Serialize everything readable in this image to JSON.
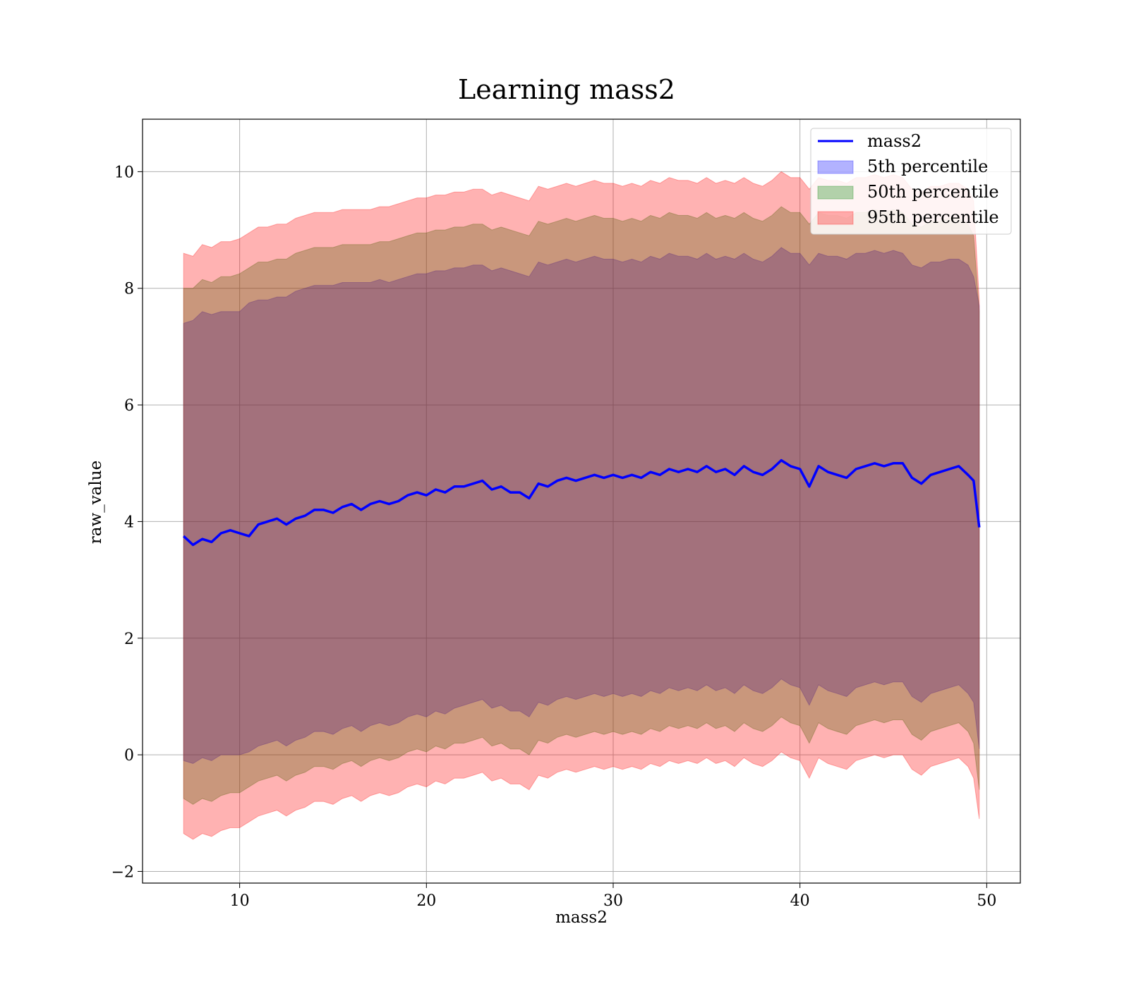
{
  "chart_data": {
    "type": "area",
    "title": "Learning mass2",
    "xlabel": "mass2",
    "ylabel": "raw_value",
    "xlim": [
      4.8,
      51.8
    ],
    "ylim": [
      -2.2,
      10.9
    ],
    "xticks": [
      10,
      20,
      30,
      40,
      50
    ],
    "yticks": [
      -2,
      0,
      2,
      4,
      6,
      8,
      10
    ],
    "grid": true,
    "legend_position": "top-right",
    "colors": {
      "line": "#0000ff",
      "band_5th": "#0000ff",
      "band_50th": "#008000",
      "band_95th": "#ff0000"
    },
    "line": {
      "name": "mass2",
      "x": [
        7.0,
        7.5,
        8.0,
        8.5,
        9.0,
        9.5,
        10.0,
        10.5,
        11.0,
        11.5,
        12.0,
        12.5,
        13.0,
        13.5,
        14.0,
        14.5,
        15.0,
        15.5,
        16.0,
        16.5,
        17.0,
        17.5,
        18.0,
        18.5,
        19.0,
        19.5,
        20.0,
        20.5,
        21.0,
        21.5,
        22.0,
        22.5,
        23.0,
        23.5,
        24.0,
        24.5,
        25.0,
        25.5,
        26.0,
        26.5,
        27.0,
        27.5,
        28.0,
        28.5,
        29.0,
        29.5,
        30.0,
        30.5,
        31.0,
        31.5,
        32.0,
        32.5,
        33.0,
        33.5,
        34.0,
        34.5,
        35.0,
        35.5,
        36.0,
        36.5,
        37.0,
        37.5,
        38.0,
        38.5,
        39.0,
        39.5,
        40.0,
        40.5,
        41.0,
        41.5,
        42.0,
        42.5,
        43.0,
        43.5,
        44.0,
        44.5,
        45.0,
        45.5,
        46.0,
        46.5,
        47.0,
        47.5,
        48.0,
        48.5,
        49.0,
        49.3,
        49.6
      ],
      "y": [
        3.75,
        3.6,
        3.7,
        3.65,
        3.8,
        3.85,
        3.8,
        3.75,
        3.95,
        4.0,
        4.05,
        3.95,
        4.05,
        4.1,
        4.2,
        4.2,
        4.15,
        4.25,
        4.3,
        4.2,
        4.3,
        4.35,
        4.3,
        4.35,
        4.45,
        4.5,
        4.45,
        4.55,
        4.5,
        4.6,
        4.6,
        4.65,
        4.7,
        4.55,
        4.6,
        4.5,
        4.5,
        4.4,
        4.65,
        4.6,
        4.7,
        4.75,
        4.7,
        4.75,
        4.8,
        4.75,
        4.8,
        4.75,
        4.8,
        4.75,
        4.85,
        4.8,
        4.9,
        4.85,
        4.9,
        4.85,
        4.95,
        4.85,
        4.9,
        4.8,
        4.95,
        4.85,
        4.8,
        4.9,
        5.05,
        4.95,
        4.9,
        4.6,
        4.95,
        4.85,
        4.8,
        4.75,
        4.9,
        4.95,
        5.0,
        4.95,
        5.0,
        5.0,
        4.75,
        4.65,
        4.8,
        4.85,
        4.9,
        4.95,
        4.8,
        4.7,
        3.9
      ]
    },
    "bands": [
      {
        "name": "5th percentile",
        "upper": [
          7.4,
          7.45,
          7.6,
          7.55,
          7.6,
          7.6,
          7.6,
          7.75,
          7.8,
          7.8,
          7.85,
          7.85,
          7.95,
          8.0,
          8.05,
          8.05,
          8.05,
          8.1,
          8.1,
          8.1,
          8.1,
          8.15,
          8.1,
          8.15,
          8.2,
          8.25,
          8.25,
          8.3,
          8.3,
          8.35,
          8.35,
          8.4,
          8.4,
          8.3,
          8.35,
          8.3,
          8.25,
          8.2,
          8.45,
          8.4,
          8.45,
          8.5,
          8.45,
          8.5,
          8.55,
          8.5,
          8.5,
          8.45,
          8.5,
          8.45,
          8.55,
          8.5,
          8.6,
          8.55,
          8.55,
          8.5,
          8.6,
          8.5,
          8.55,
          8.5,
          8.6,
          8.5,
          8.45,
          8.55,
          8.7,
          8.6,
          8.6,
          8.4,
          8.6,
          8.55,
          8.55,
          8.5,
          8.6,
          8.6,
          8.65,
          8.6,
          8.65,
          8.6,
          8.4,
          8.35,
          8.45,
          8.45,
          8.5,
          8.5,
          8.4,
          8.2,
          7.7
        ],
        "lower": [
          -0.1,
          -0.15,
          -0.05,
          -0.1,
          0.0,
          0.0,
          0.0,
          0.05,
          0.15,
          0.2,
          0.25,
          0.15,
          0.25,
          0.3,
          0.4,
          0.4,
          0.35,
          0.45,
          0.5,
          0.4,
          0.5,
          0.55,
          0.5,
          0.55,
          0.65,
          0.7,
          0.65,
          0.75,
          0.7,
          0.8,
          0.85,
          0.9,
          0.95,
          0.8,
          0.85,
          0.75,
          0.75,
          0.65,
          0.9,
          0.85,
          0.95,
          1.0,
          0.95,
          1.0,
          1.05,
          1.0,
          1.05,
          1.0,
          1.05,
          1.0,
          1.1,
          1.05,
          1.15,
          1.1,
          1.15,
          1.1,
          1.2,
          1.1,
          1.15,
          1.05,
          1.2,
          1.1,
          1.05,
          1.15,
          1.3,
          1.2,
          1.15,
          0.85,
          1.2,
          1.1,
          1.05,
          1.0,
          1.15,
          1.2,
          1.25,
          1.2,
          1.25,
          1.25,
          1.0,
          0.9,
          1.05,
          1.1,
          1.15,
          1.2,
          1.05,
          0.9,
          0.1
        ]
      },
      {
        "name": "50th percentile",
        "upper": [
          8.0,
          8.0,
          8.15,
          8.1,
          8.2,
          8.2,
          8.25,
          8.35,
          8.45,
          8.45,
          8.5,
          8.5,
          8.6,
          8.65,
          8.7,
          8.7,
          8.7,
          8.75,
          8.75,
          8.75,
          8.75,
          8.8,
          8.8,
          8.85,
          8.9,
          8.95,
          8.95,
          9.0,
          9.0,
          9.05,
          9.05,
          9.1,
          9.1,
          9.0,
          9.05,
          9.0,
          8.95,
          8.9,
          9.15,
          9.1,
          9.15,
          9.2,
          9.15,
          9.2,
          9.25,
          9.2,
          9.2,
          9.15,
          9.2,
          9.15,
          9.25,
          9.2,
          9.3,
          9.25,
          9.25,
          9.2,
          9.3,
          9.2,
          9.25,
          9.2,
          9.3,
          9.2,
          9.15,
          9.25,
          9.4,
          9.3,
          9.3,
          9.1,
          9.3,
          9.25,
          9.25,
          9.2,
          9.3,
          9.3,
          9.35,
          9.3,
          9.35,
          9.3,
          9.1,
          9.05,
          9.15,
          9.15,
          9.2,
          9.2,
          9.1,
          8.9,
          7.6
        ],
        "lower": [
          -0.75,
          -0.85,
          -0.75,
          -0.8,
          -0.7,
          -0.65,
          -0.65,
          -0.55,
          -0.45,
          -0.4,
          -0.35,
          -0.45,
          -0.35,
          -0.3,
          -0.2,
          -0.2,
          -0.25,
          -0.15,
          -0.1,
          -0.2,
          -0.1,
          -0.05,
          -0.1,
          -0.05,
          0.05,
          0.1,
          0.05,
          0.15,
          0.1,
          0.2,
          0.2,
          0.25,
          0.3,
          0.15,
          0.2,
          0.1,
          0.1,
          0.0,
          0.25,
          0.2,
          0.3,
          0.35,
          0.3,
          0.35,
          0.4,
          0.35,
          0.4,
          0.35,
          0.4,
          0.35,
          0.45,
          0.4,
          0.5,
          0.45,
          0.5,
          0.45,
          0.55,
          0.45,
          0.5,
          0.4,
          0.55,
          0.45,
          0.4,
          0.5,
          0.65,
          0.55,
          0.5,
          0.2,
          0.55,
          0.45,
          0.4,
          0.35,
          0.5,
          0.55,
          0.6,
          0.55,
          0.6,
          0.6,
          0.35,
          0.25,
          0.4,
          0.45,
          0.5,
          0.55,
          0.4,
          0.2,
          -0.6
        ]
      },
      {
        "name": "95th percentile",
        "upper": [
          8.6,
          8.55,
          8.75,
          8.7,
          8.8,
          8.8,
          8.85,
          8.95,
          9.05,
          9.05,
          9.1,
          9.1,
          9.2,
          9.25,
          9.3,
          9.3,
          9.3,
          9.35,
          9.35,
          9.35,
          9.35,
          9.4,
          9.4,
          9.45,
          9.5,
          9.55,
          9.55,
          9.6,
          9.6,
          9.65,
          9.65,
          9.7,
          9.7,
          9.6,
          9.65,
          9.6,
          9.55,
          9.5,
          9.75,
          9.7,
          9.75,
          9.8,
          9.75,
          9.8,
          9.85,
          9.8,
          9.8,
          9.75,
          9.8,
          9.75,
          9.85,
          9.8,
          9.9,
          9.85,
          9.85,
          9.8,
          9.9,
          9.8,
          9.85,
          9.8,
          9.9,
          9.8,
          9.75,
          9.85,
          10.0,
          9.9,
          9.9,
          9.7,
          9.9,
          9.85,
          9.85,
          9.8,
          9.9,
          9.9,
          9.95,
          9.9,
          9.95,
          9.9,
          9.7,
          9.65,
          9.75,
          9.75,
          9.8,
          9.8,
          9.7,
          9.5,
          7.8
        ],
        "lower": [
          -1.35,
          -1.45,
          -1.35,
          -1.4,
          -1.3,
          -1.25,
          -1.25,
          -1.15,
          -1.05,
          -1.0,
          -0.95,
          -1.05,
          -0.95,
          -0.9,
          -0.8,
          -0.8,
          -0.85,
          -0.75,
          -0.7,
          -0.8,
          -0.7,
          -0.65,
          -0.7,
          -0.65,
          -0.55,
          -0.5,
          -0.55,
          -0.45,
          -0.5,
          -0.4,
          -0.4,
          -0.35,
          -0.3,
          -0.45,
          -0.4,
          -0.5,
          -0.5,
          -0.6,
          -0.35,
          -0.4,
          -0.3,
          -0.25,
          -0.3,
          -0.25,
          -0.2,
          -0.25,
          -0.2,
          -0.25,
          -0.2,
          -0.25,
          -0.15,
          -0.2,
          -0.1,
          -0.15,
          -0.1,
          -0.15,
          -0.05,
          -0.15,
          -0.1,
          -0.2,
          -0.05,
          -0.15,
          -0.2,
          -0.1,
          0.05,
          -0.05,
          -0.1,
          -0.4,
          -0.05,
          -0.15,
          -0.2,
          -0.25,
          -0.1,
          -0.05,
          0.0,
          -0.05,
          0.0,
          0.0,
          -0.25,
          -0.35,
          -0.2,
          -0.15,
          -0.1,
          -0.05,
          -0.2,
          -0.4,
          -1.1
        ]
      }
    ],
    "legend": [
      "mass2",
      "5th percentile",
      "50th percentile",
      "95th percentile"
    ]
  }
}
